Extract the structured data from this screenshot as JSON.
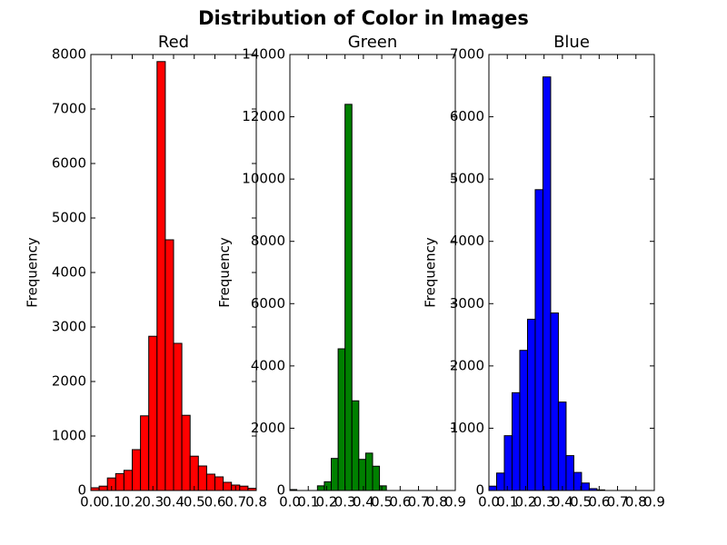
{
  "title": "Distribution of Color in Images",
  "chart_data": [
    {
      "type": "histogram",
      "title": "Red",
      "ylabel": "Frequency",
      "color": "#ff0000",
      "bins": [
        0,
        0.04,
        0.08,
        0.12,
        0.16,
        0.2,
        0.24,
        0.28,
        0.32,
        0.36,
        0.4,
        0.44,
        0.48,
        0.52,
        0.56,
        0.6,
        0.64,
        0.68,
        0.72,
        0.76,
        0.8
      ],
      "counts": [
        50,
        80,
        230,
        310,
        370,
        750,
        1370,
        2830,
        7870,
        4600,
        2700,
        1380,
        630,
        450,
        300,
        250,
        150,
        100,
        80,
        40
      ],
      "xlim": [
        0,
        0.8
      ],
      "ylim": [
        0,
        8000
      ],
      "xticks": [
        {
          "value": 0,
          "label": "0.0"
        },
        0.1,
        0.2,
        0.3,
        0.4,
        0.5,
        0.6,
        0.7,
        0.8
      ],
      "yticks": [
        0,
        1000,
        2000,
        3000,
        4000,
        5000,
        6000,
        7000,
        8000
      ]
    },
    {
      "type": "histogram",
      "title": "Green",
      "ylabel": "Frequency",
      "color": "#008000",
      "bins": [
        0,
        0.0375,
        0.075,
        0.1125,
        0.15,
        0.1875,
        0.225,
        0.2625,
        0.3,
        0.3375,
        0.375,
        0.4125,
        0.45,
        0.4875,
        0.525,
        0.5625,
        0.6,
        0.6375,
        0.675,
        0.7125,
        0.75
      ],
      "counts": [
        30,
        0,
        0,
        0,
        150,
        280,
        1030,
        4550,
        12400,
        2880,
        1000,
        1200,
        780,
        150,
        0,
        0,
        0,
        0,
        0,
        0
      ],
      "xlim": [
        0,
        0.9
      ],
      "ylim": [
        0,
        14000
      ],
      "xticks": [
        {
          "value": 0,
          "label": "0.0"
        },
        0.1,
        0.2,
        0.3,
        0.4,
        0.5,
        0.6,
        0.7,
        0.8,
        0.9
      ],
      "yticks": [
        0,
        2000,
        4000,
        6000,
        8000,
        10000,
        12000,
        14000
      ]
    },
    {
      "type": "histogram",
      "title": "Blue",
      "ylabel": "Frequency",
      "color": "#0000ff",
      "bins": [
        0,
        0.042,
        0.084,
        0.126,
        0.168,
        0.21,
        0.252,
        0.294,
        0.336,
        0.378,
        0.42,
        0.462,
        0.504,
        0.546,
        0.588,
        0.63,
        0.672,
        0.714,
        0.756,
        0.798,
        0.84
      ],
      "counts": [
        70,
        280,
        880,
        1570,
        2250,
        2750,
        4830,
        6640,
        2850,
        1420,
        560,
        290,
        120,
        30,
        10,
        0,
        0,
        0,
        0,
        0
      ],
      "xlim": [
        0,
        0.9
      ],
      "ylim": [
        0,
        7000
      ],
      "xticks": [
        {
          "value": 0,
          "label": "0.0"
        },
        0.1,
        0.2,
        0.3,
        0.4,
        0.5,
        0.6,
        0.7,
        0.8,
        0.9
      ],
      "yticks": [
        0,
        1000,
        2000,
        3000,
        4000,
        5000,
        6000,
        7000
      ]
    }
  ]
}
